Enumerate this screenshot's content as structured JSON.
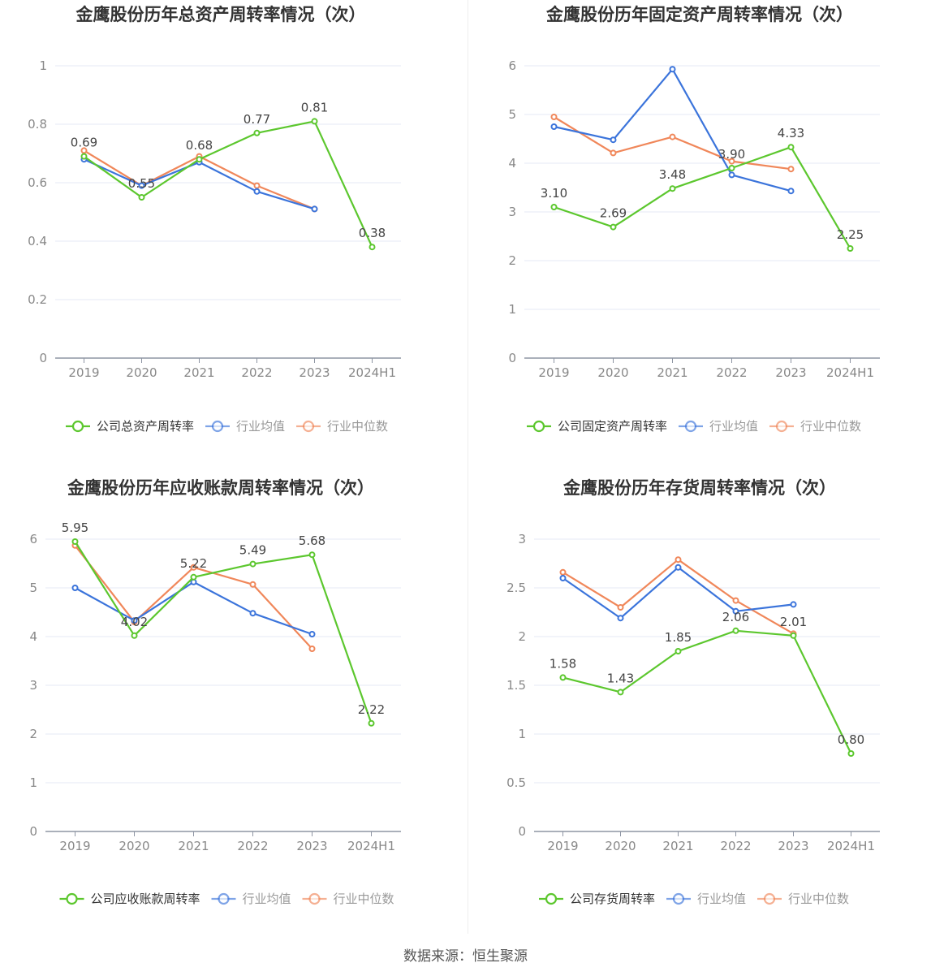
{
  "colors": {
    "company": "#5cc72e",
    "avg": "#3b74db",
    "median": "#f0875a",
    "grid": "#e6eaf4",
    "axis": "#8e95a3"
  },
  "legend_common": {
    "avg": "行业均值",
    "median": "行业中位数"
  },
  "source": "数据来源：恒生聚源",
  "chart_data": [
    {
      "type": "line",
      "title": "金鹰股份历年总资产周转率情况（次）",
      "categories": [
        "2019",
        "2020",
        "2021",
        "2022",
        "2023",
        "2024H1"
      ],
      "ylim": [
        0,
        1
      ],
      "yticks": [
        0,
        0.2,
        0.4,
        0.6,
        0.8,
        1
      ],
      "ytick_labels": [
        "0",
        "0.2",
        "0.4",
        "0.6",
        "0.8",
        "1"
      ],
      "series": [
        {
          "name": "公司总资产周转率",
          "key": "company",
          "values": [
            0.69,
            0.55,
            0.68,
            0.77,
            0.81,
            0.38
          ],
          "labels": [
            "0.69",
            "0.55",
            "0.68",
            "0.77",
            "0.81",
            "0.38"
          ]
        },
        {
          "name": "行业均值",
          "key": "avg",
          "values": [
            0.68,
            0.59,
            0.67,
            0.57,
            0.51,
            null
          ]
        },
        {
          "name": "行业中位数",
          "key": "median",
          "values": [
            0.71,
            0.59,
            0.69,
            0.59,
            0.51,
            null
          ]
        }
      ],
      "grid": true,
      "legend_position": "bottom"
    },
    {
      "type": "line",
      "title": "金鹰股份历年固定资产周转率情况（次）",
      "categories": [
        "2019",
        "2020",
        "2021",
        "2022",
        "2023",
        "2024H1"
      ],
      "ylim": [
        0,
        6
      ],
      "yticks": [
        0,
        1,
        2,
        3,
        4,
        5,
        6
      ],
      "ytick_labels": [
        "0",
        "1",
        "2",
        "3",
        "4",
        "5",
        "6"
      ],
      "series": [
        {
          "name": "公司固定资产周转率",
          "key": "company",
          "values": [
            3.1,
            2.69,
            3.48,
            3.9,
            4.33,
            2.25
          ],
          "labels": [
            "3.10",
            "2.69",
            "3.48",
            "3.90",
            "4.33",
            "2.25"
          ]
        },
        {
          "name": "行业均值",
          "key": "avg",
          "values": [
            4.75,
            4.48,
            5.93,
            3.76,
            3.43,
            null
          ]
        },
        {
          "name": "行业中位数",
          "key": "median",
          "values": [
            4.95,
            4.21,
            4.54,
            4.04,
            3.88,
            null
          ]
        }
      ],
      "grid": true,
      "legend_position": "bottom"
    },
    {
      "type": "line",
      "title": "金鹰股份历年应收账款周转率情况（次）",
      "categories": [
        "2019",
        "2020",
        "2021",
        "2022",
        "2023",
        "2024H1"
      ],
      "ylim": [
        0,
        6
      ],
      "yticks": [
        0,
        1,
        2,
        3,
        4,
        5,
        6
      ],
      "ytick_labels": [
        "0",
        "1",
        "2",
        "3",
        "4",
        "5",
        "6"
      ],
      "series": [
        {
          "name": "公司应收账款周转率",
          "key": "company",
          "values": [
            5.95,
            4.02,
            5.22,
            5.49,
            5.68,
            2.22
          ],
          "labels": [
            "5.95",
            "4.02",
            "5.22",
            "5.49",
            "5.68",
            "2.22"
          ]
        },
        {
          "name": "行业均值",
          "key": "avg",
          "values": [
            5.0,
            4.33,
            5.12,
            4.48,
            4.05,
            null
          ]
        },
        {
          "name": "行业中位数",
          "key": "median",
          "values": [
            5.87,
            4.3,
            5.42,
            5.07,
            3.75,
            null
          ]
        }
      ],
      "grid": true,
      "legend_position": "bottom"
    },
    {
      "type": "line",
      "title": "金鹰股份历年存货周转率情况（次）",
      "categories": [
        "2019",
        "2020",
        "2021",
        "2022",
        "2023",
        "2024H1"
      ],
      "ylim": [
        0,
        3
      ],
      "yticks": [
        0,
        0.5,
        1,
        1.5,
        2,
        2.5,
        3
      ],
      "ytick_labels": [
        "0",
        "0.5",
        "1",
        "1.5",
        "2",
        "2.5",
        "3"
      ],
      "series": [
        {
          "name": "公司存货周转率",
          "key": "company",
          "values": [
            1.58,
            1.43,
            1.85,
            2.06,
            2.01,
            0.8
          ],
          "labels": [
            "1.58",
            "1.43",
            "1.85",
            "2.06",
            "2.01",
            "0.80"
          ]
        },
        {
          "name": "行业均值",
          "key": "avg",
          "values": [
            2.6,
            2.19,
            2.71,
            2.26,
            2.33,
            null
          ]
        },
        {
          "name": "行业中位数",
          "key": "median",
          "values": [
            2.66,
            2.3,
            2.79,
            2.37,
            2.03,
            null
          ]
        }
      ],
      "grid": true,
      "legend_position": "bottom"
    }
  ]
}
